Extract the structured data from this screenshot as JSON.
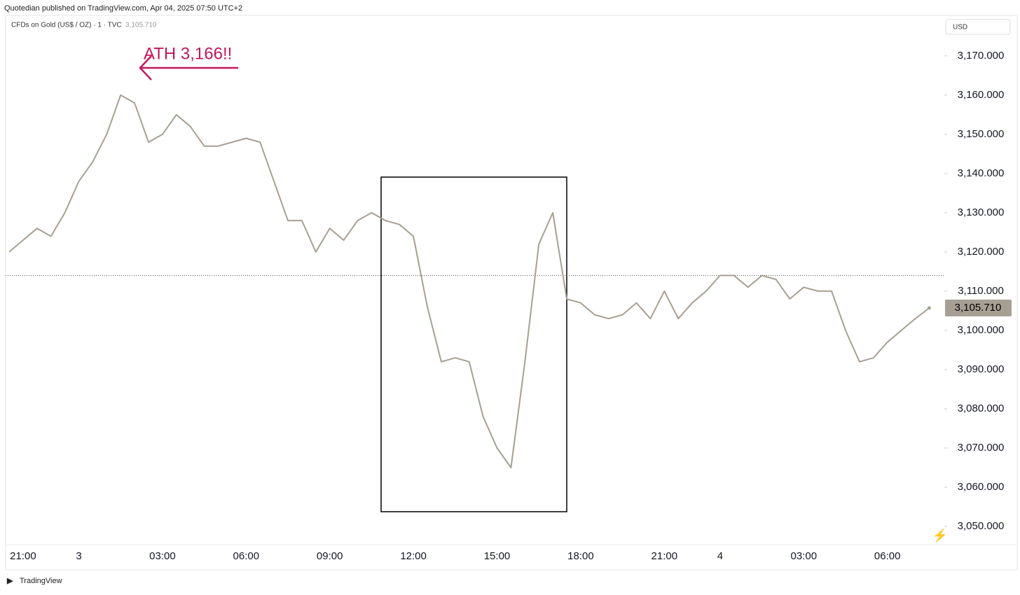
{
  "header": {
    "publisher": "Quotedian published on TradingView.com, Apr 04, 2025 07:50 UTC+2",
    "symbol": "CFDs on Gold (US$ / OZ) · 1 · TVC",
    "currency": "USD",
    "brand": "TradingView"
  },
  "chart_data": {
    "type": "line",
    "color": "#a89f94",
    "categories": [
      null,
      "21:00",
      null,
      null,
      null,
      "3",
      null,
      null,
      null,
      null,
      null,
      "03:00",
      null,
      null,
      null,
      null,
      null,
      "06:00",
      null,
      null,
      null,
      null,
      null,
      "09:00",
      null,
      null,
      null,
      null,
      null,
      "12:00",
      null,
      null,
      null,
      null,
      null,
      "15:00",
      null,
      null,
      null,
      null,
      null,
      "18:00",
      null,
      null,
      null,
      null,
      null,
      "21:00",
      null,
      null,
      null,
      "4",
      null,
      null,
      null,
      null,
      null,
      "03:00",
      null,
      null,
      null,
      null,
      null,
      "06:00",
      null,
      null,
      null
    ],
    "values": [
      3120,
      3123,
      3126,
      3124,
      3130,
      3138,
      3143,
      3150,
      3160,
      3158,
      3148,
      3150,
      3155,
      3152,
      3147,
      3147,
      3148,
      3149,
      3148,
      3138,
      3128,
      3128,
      3120,
      3126,
      3123,
      3128,
      3130,
      3128,
      3127,
      3124,
      3106,
      3092,
      3093,
      3092,
      3078,
      3070,
      3065,
      3092,
      3122,
      3130,
      3108,
      3107,
      3104,
      3103,
      3104,
      3107,
      3103,
      3110,
      3103,
      3107,
      3110,
      3114,
      3114,
      3111,
      3114,
      3113,
      3108,
      3111,
      3110,
      3110,
      3100,
      3092,
      3093,
      3097,
      3100,
      3103,
      3105.71
    ],
    "last_price": {
      "value": 3105.71,
      "label": "3,105.710"
    },
    "reference_line": 3114,
    "annotation": "ATH 3,166!!",
    "ylim": [
      3045.9,
      3178.9
    ],
    "yticks": [
      {
        "value": 3050,
        "label": "3,050.000"
      },
      {
        "value": 3060,
        "label": "3,060.000"
      },
      {
        "value": 3070,
        "label": "3,070.000"
      },
      {
        "value": 3080,
        "label": "3,080.000"
      },
      {
        "value": 3090,
        "label": "3,090.000"
      },
      {
        "value": 3100,
        "label": "3,100.000"
      },
      {
        "value": 3110,
        "label": "3,110.000"
      },
      {
        "value": 3120,
        "label": "3,120.000"
      },
      {
        "value": 3130,
        "label": "3,130.000"
      },
      {
        "value": 3140,
        "label": "3,140.000"
      },
      {
        "value": 3150,
        "label": "3,150.000"
      },
      {
        "value": 3160,
        "label": "3,160.000"
      },
      {
        "value": 3170,
        "label": "3,170.000"
      }
    ]
  }
}
